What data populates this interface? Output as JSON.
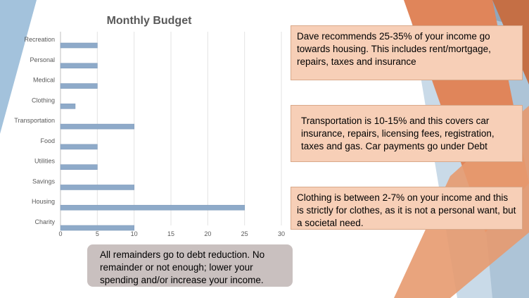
{
  "slide": {
    "callouts": {
      "housing": "Dave recommends 25-35% of your income go towards housing. This includes rent/mortgage, repairs, taxes and insurance",
      "transportation": "Transportation is 10-15% and this covers car insurance, repairs, licensing fees, registration, taxes and gas. Car payments go under Debt",
      "clothing": "Clothing is between 2-7% on your income and this is strictly for clothes, as it is not a personal want, but a societal need."
    },
    "footer_note": "All remainders go to debt reduction. No remainder or not enough; lower your spending and/or increase your income.",
    "colors": {
      "bar": "#8eaac9",
      "callout_fill": "#f7cfb7",
      "footer_fill": "#c9c0bf",
      "accent_orange": "#e0855a",
      "accent_blue": "#a3c2dc"
    }
  },
  "chart_data": {
    "type": "bar",
    "orientation": "horizontal",
    "title": "Monthly Budget",
    "categories": [
      "Recreation",
      "Personal",
      "Medical",
      "Clothing",
      "Transportation",
      "Food",
      "Utilities",
      "Savings",
      "Housing",
      "Charity"
    ],
    "values": [
      5,
      5,
      5,
      2,
      10,
      5,
      5,
      10,
      25,
      10
    ],
    "xlim": [
      0,
      30
    ],
    "xticks": [
      0,
      5,
      10,
      15,
      20,
      25,
      30
    ],
    "grid": "vertical"
  }
}
